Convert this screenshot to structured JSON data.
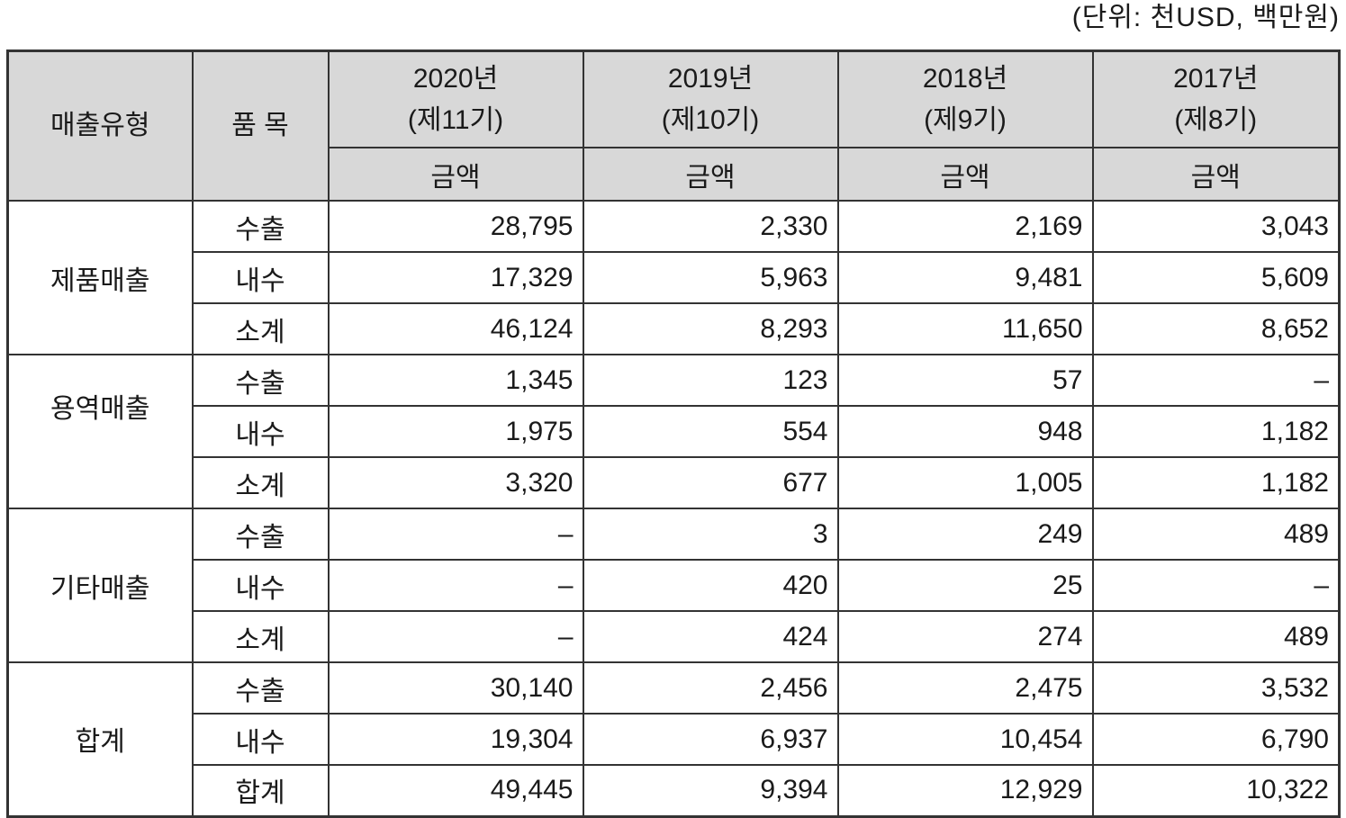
{
  "unit_label": "(단위: 천USD, 백만원)",
  "table": {
    "col_headers": {
      "sales_type": "매출유형",
      "item": "품 목",
      "years": [
        {
          "year": "2020년",
          "term": "(제11기)",
          "amount_label": "금액"
        },
        {
          "year": "2019년",
          "term": "(제10기)",
          "amount_label": "금액"
        },
        {
          "year": "2018년",
          "term": "(제9기)",
          "amount_label": "금액"
        },
        {
          "year": "2017년",
          "term": "(제8기)",
          "amount_label": "금액"
        }
      ]
    },
    "sections": [
      {
        "label": "제품매출",
        "rows": [
          {
            "item": "수출",
            "values": [
              "28,795",
              "2,330",
              "2,169",
              "3,043"
            ]
          },
          {
            "item": "내수",
            "values": [
              "17,329",
              "5,963",
              "9,481",
              "5,609"
            ]
          },
          {
            "item": "소계",
            "values": [
              "46,124",
              "8,293",
              "11,650",
              "8,652"
            ]
          }
        ]
      },
      {
        "label": "용역매출",
        "rows": [
          {
            "item": "수출",
            "values": [
              "1,345",
              "123",
              "57",
              "–"
            ]
          },
          {
            "item": "내수",
            "values": [
              "1,975",
              "554",
              "948",
              "1,182"
            ]
          },
          {
            "item": "소계",
            "values": [
              "3,320",
              "677",
              "1,005",
              "1,182"
            ]
          }
        ]
      },
      {
        "label": "기타매출",
        "rows": [
          {
            "item": "수출",
            "values": [
              "–",
              "3",
              "249",
              "489"
            ]
          },
          {
            "item": "내수",
            "values": [
              "–",
              "420",
              "25",
              "–"
            ]
          },
          {
            "item": "소계",
            "values": [
              "–",
              "424",
              "274",
              "489"
            ]
          }
        ]
      },
      {
        "label": "합계",
        "rows": [
          {
            "item": "수출",
            "values": [
              "30,140",
              "2,456",
              "2,475",
              "3,532"
            ]
          },
          {
            "item": "내수",
            "values": [
              "19,304",
              "6,937",
              "10,454",
              "6,790"
            ]
          },
          {
            "item": "합계",
            "values": [
              "49,445",
              "9,394",
              "12,929",
              "10,322"
            ]
          }
        ]
      }
    ]
  },
  "colors": {
    "header_bg": "#d8d8d8",
    "border": "#333333",
    "text": "#1a1a1a"
  }
}
